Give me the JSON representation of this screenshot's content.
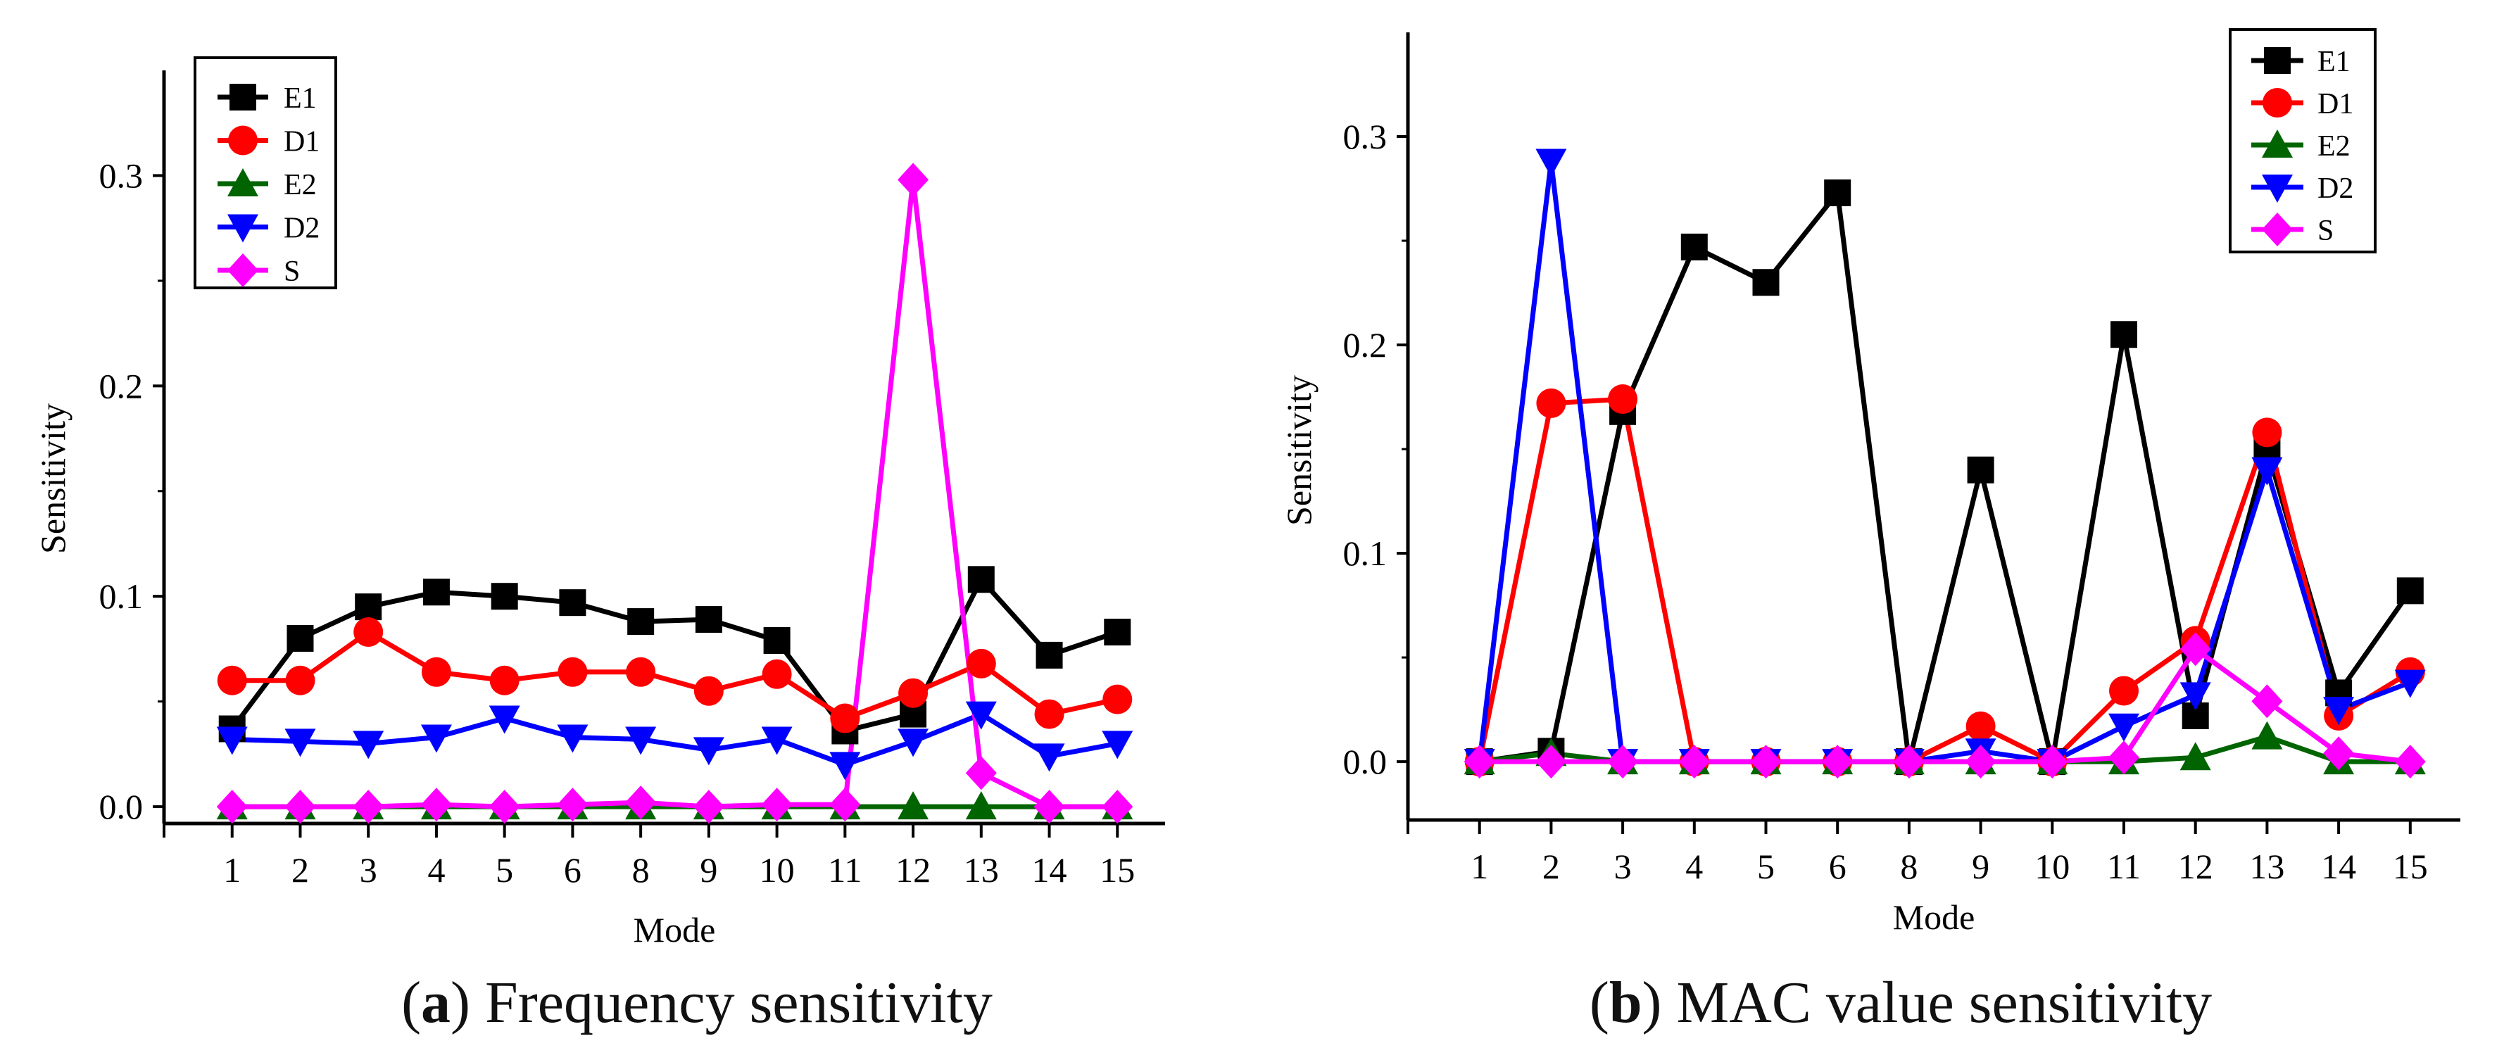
{
  "chart_data": [
    {
      "type": "line",
      "caption_letter": "a",
      "caption_text": "Frequency sensitivity",
      "title": "",
      "xlabel": "Mode",
      "ylabel": "Sensitivity",
      "categories": [
        "1",
        "2",
        "3",
        "4",
        "5",
        "6",
        "8",
        "9",
        "10",
        "11",
        "12",
        "13",
        "14",
        "15"
      ],
      "ylim": [
        -0.008,
        0.35
      ],
      "yticks": [
        0.0,
        0.1,
        0.2,
        0.3
      ],
      "ytick_labels": [
        "0.0",
        "0.1",
        "0.2",
        "0.3"
      ],
      "grid": false,
      "legend_position": "top-left",
      "series": [
        {
          "name": "E1",
          "color": "#000000",
          "marker": "square",
          "values": [
            0.037,
            0.08,
            0.095,
            0.102,
            0.1,
            0.097,
            0.088,
            0.089,
            0.079,
            0.036,
            0.044,
            0.108,
            0.072,
            0.083
          ]
        },
        {
          "name": "D1",
          "color": "#ff0000",
          "marker": "circle",
          "values": [
            0.06,
            0.06,
            0.083,
            0.064,
            0.06,
            0.064,
            0.064,
            0.055,
            0.063,
            0.042,
            0.054,
            0.068,
            0.044,
            0.051
          ]
        },
        {
          "name": "E2",
          "color": "#006400",
          "marker": "triangle-up",
          "values": [
            0.0,
            0.0,
            0.0,
            0.0,
            0.0,
            0.0,
            0.0,
            0.0,
            0.0,
            0.0,
            0.0,
            0.0,
            0.0,
            0.0
          ]
        },
        {
          "name": "D2",
          "color": "#0000ff",
          "marker": "triangle-down",
          "values": [
            0.032,
            0.031,
            0.03,
            0.033,
            0.042,
            0.033,
            0.032,
            0.027,
            0.032,
            0.02,
            0.031,
            0.044,
            0.024,
            0.03
          ]
        },
        {
          "name": "S",
          "color": "#ff00ff",
          "marker": "diamond",
          "values": [
            0.0,
            0.0,
            0.0,
            0.001,
            0.0,
            0.001,
            0.002,
            0.0,
            0.001,
            0.001,
            0.298,
            0.016,
            0.0,
            0.0
          ]
        }
      ]
    },
    {
      "type": "line",
      "caption_letter": "b",
      "caption_text": "MAC value sensitivity",
      "title": "",
      "xlabel": "Mode",
      "ylabel": "Sensitivity",
      "categories": [
        "1",
        "2",
        "3",
        "4",
        "5",
        "6",
        "8",
        "9",
        "10",
        "11",
        "12",
        "13",
        "14",
        "15"
      ],
      "ylim": [
        -0.028,
        0.35
      ],
      "yticks": [
        0.0,
        0.1,
        0.2,
        0.3
      ],
      "ytick_labels": [
        "0.0",
        "0.1",
        "0.2",
        "0.3"
      ],
      "grid": false,
      "legend_position": "top-right",
      "series": [
        {
          "name": "E1",
          "color": "#000000",
          "marker": "square",
          "values": [
            0.0,
            0.005,
            0.168,
            0.247,
            0.23,
            0.273,
            0.0,
            0.14,
            0.0,
            0.205,
            0.022,
            0.15,
            0.033,
            0.082
          ]
        },
        {
          "name": "D1",
          "color": "#ff0000",
          "marker": "circle",
          "values": [
            0.0,
            0.172,
            0.174,
            0.0,
            0.0,
            0.0,
            0.0,
            0.017,
            0.0,
            0.034,
            0.058,
            0.158,
            0.022,
            0.043
          ]
        },
        {
          "name": "E2",
          "color": "#006400",
          "marker": "triangle-up",
          "values": [
            0.0,
            0.004,
            0.0,
            0.0,
            0.0,
            0.0,
            0.0,
            0.0,
            0.0,
            0.0,
            0.002,
            0.012,
            0.0,
            0.0
          ]
        },
        {
          "name": "D2",
          "color": "#0000ff",
          "marker": "triangle-down",
          "values": [
            0.0,
            0.288,
            0.0,
            0.0,
            0.0,
            0.0,
            0.0,
            0.005,
            0.0,
            0.017,
            0.032,
            0.14,
            0.025,
            0.038
          ]
        },
        {
          "name": "S",
          "color": "#ff00ff",
          "marker": "diamond",
          "values": [
            0.0,
            0.0,
            0.0,
            0.0,
            0.0,
            0.0,
            0.0,
            0.0,
            0.0,
            0.002,
            0.054,
            0.029,
            0.004,
            0.0
          ]
        }
      ]
    }
  ]
}
